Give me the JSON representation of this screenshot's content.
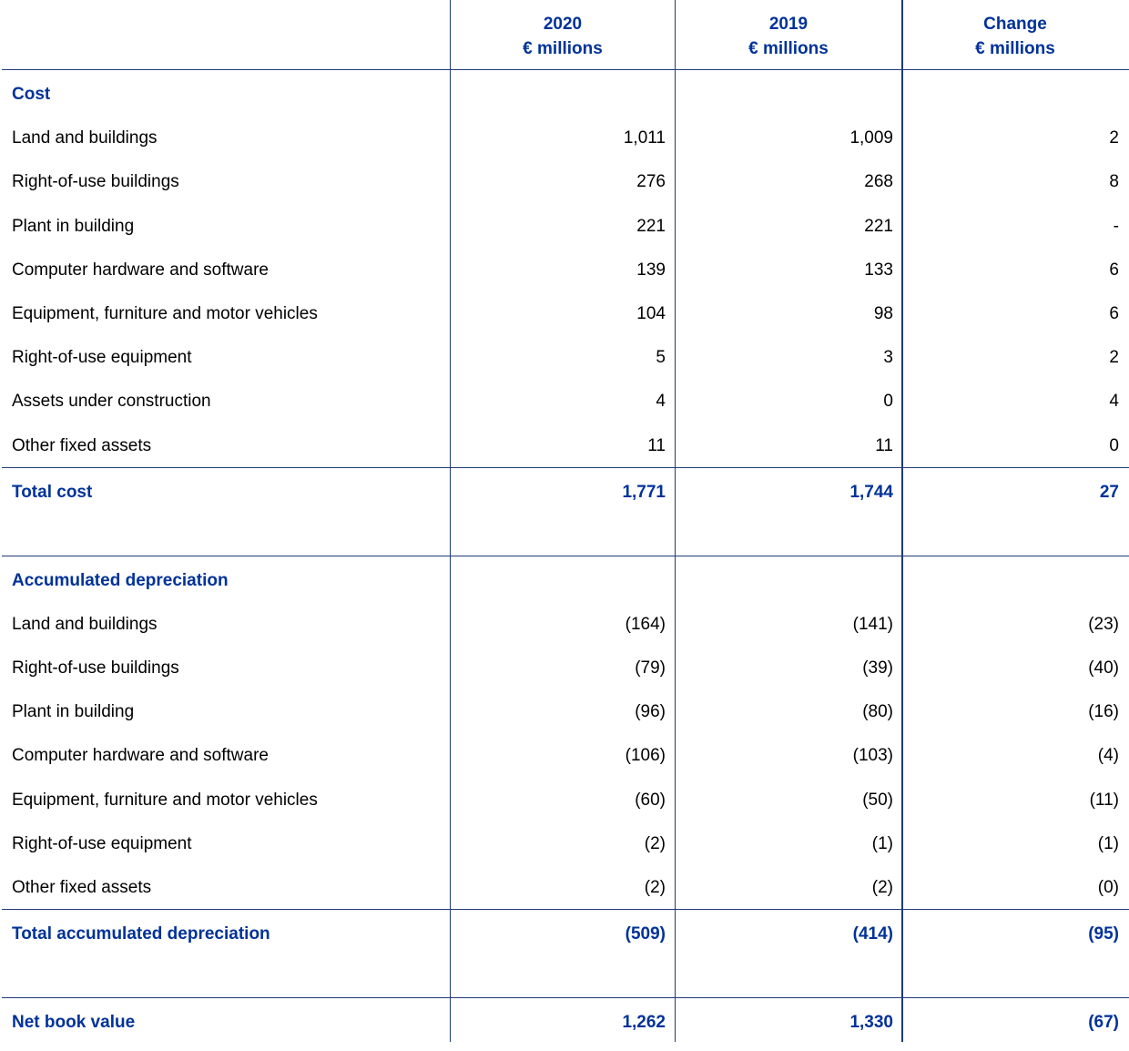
{
  "header": {
    "columns": [
      {
        "label": "2020",
        "unit": "€ millions"
      },
      {
        "label": "2019",
        "unit": "€ millions"
      },
      {
        "label": "Change",
        "unit": "€ millions"
      }
    ]
  },
  "sections": [
    {
      "title": "Cost",
      "rows": [
        {
          "label": "Land and buildings",
          "values": [
            "1,011",
            "1,009",
            "2"
          ]
        },
        {
          "label": "Right-of-use buildings",
          "values": [
            "276",
            "268",
            "8"
          ]
        },
        {
          "label": "Plant in building",
          "values": [
            "221",
            "221",
            "-"
          ]
        },
        {
          "label": "Computer hardware and software",
          "values": [
            "139",
            "133",
            "6"
          ]
        },
        {
          "label": "Equipment, furniture and motor vehicles",
          "values": [
            "104",
            "98",
            "6"
          ]
        },
        {
          "label": "Right-of-use equipment",
          "values": [
            "5",
            "3",
            "2"
          ]
        },
        {
          "label": "Assets under construction",
          "values": [
            "4",
            "0",
            "4"
          ]
        },
        {
          "label": "Other fixed assets",
          "values": [
            "11",
            "11",
            "0"
          ]
        }
      ],
      "total": {
        "label": "Total cost",
        "values": [
          "1,771",
          "1,744",
          "27"
        ]
      }
    },
    {
      "title": "Accumulated depreciation",
      "rows": [
        {
          "label": "Land and buildings",
          "values": [
            "(164)",
            "(141)",
            "(23)"
          ]
        },
        {
          "label": "Right-of-use buildings",
          "values": [
            "(79)",
            "(39)",
            "(40)"
          ]
        },
        {
          "label": "Plant in building",
          "values": [
            "(96)",
            "(80)",
            "(16)"
          ]
        },
        {
          "label": "Computer hardware and software",
          "values": [
            "(106)",
            "(103)",
            "(4)"
          ]
        },
        {
          "label": "Equipment, furniture and motor vehicles",
          "values": [
            "(60)",
            "(50)",
            "(11)"
          ]
        },
        {
          "label": "Right-of-use equipment",
          "values": [
            "(2)",
            "(1)",
            "(1)"
          ]
        },
        {
          "label": "Other fixed assets",
          "values": [
            "(2)",
            "(2)",
            "(0)"
          ]
        }
      ],
      "total": {
        "label": "Total accumulated depreciation",
        "values": [
          "(509)",
          "(414)",
          "(95)"
        ]
      }
    }
  ],
  "net": {
    "label": "Net book value",
    "values": [
      "1,262",
      "1,330",
      "(67)"
    ]
  }
}
